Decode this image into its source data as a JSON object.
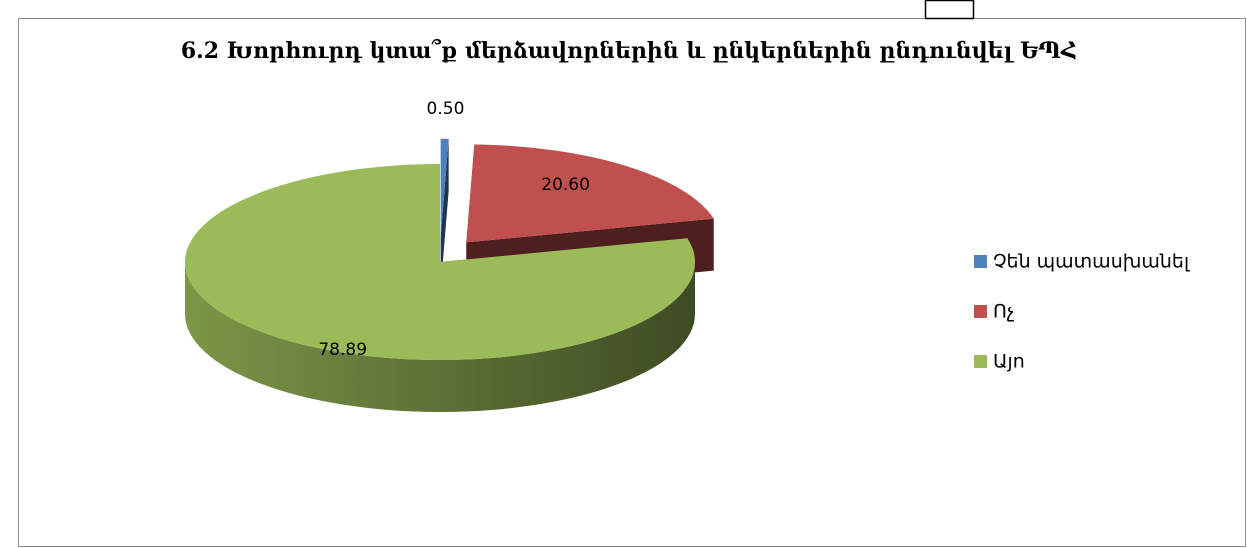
{
  "chart_data": {
    "type": "pie3d",
    "title": "6.2 Խորհուրդ կտա՞ք մերձավորներին և ընկերներին ընդունվել ԵՊՀ",
    "categories": [
      "Չեն պատասխանել",
      "Ոչ",
      "Այո"
    ],
    "values": [
      0.5,
      20.6,
      78.89
    ],
    "value_labels": [
      "0.50",
      "20.60",
      "78.89"
    ],
    "colors": [
      "#4f81bd",
      "#c0504d",
      "#9bbb59"
    ],
    "legend": "right"
  }
}
